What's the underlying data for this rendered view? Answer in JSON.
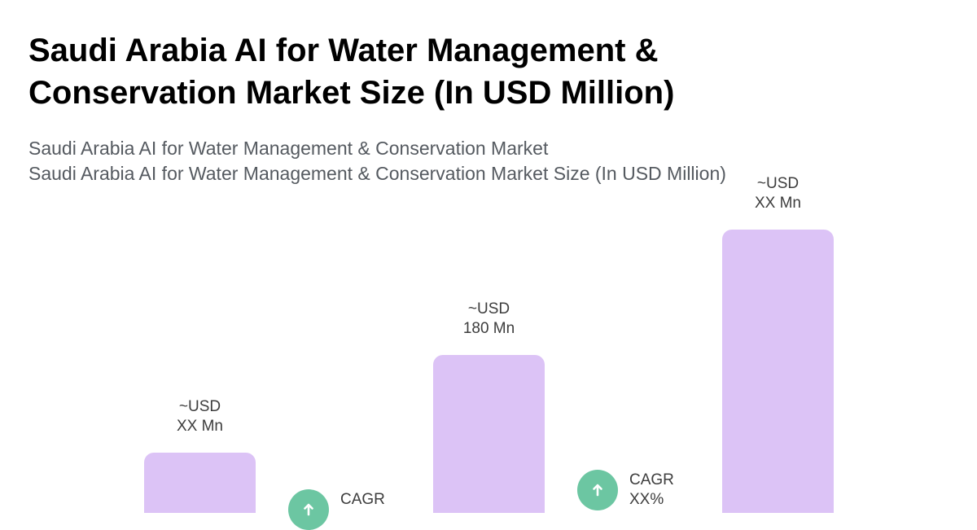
{
  "title": "Saudi Arabia AI for Water Management & Conservation Market Size (In USD Million)",
  "subtitle_lines": [
    "Saudi Arabia AI for Water Management & Conservation Market",
    "Saudi Arabia AI for Water Management & Conservation Market Size (In USD Million)"
  ],
  "colors": {
    "bar": "#dcc3f6",
    "cagr_badge": "#6cc6a2",
    "title": "#000000",
    "subtitle": "#555a60"
  },
  "chart_data": {
    "type": "bar",
    "title": "Saudi Arabia AI for Water Management & Conservation Market Size (In USD Million)",
    "categories": [
      "",
      "",
      ""
    ],
    "values": [
      null,
      180,
      null
    ],
    "value_labels": [
      [
        "~USD",
        "XX Mn"
      ],
      [
        "~USD",
        "180 Mn"
      ],
      [
        "~USD",
        "XX Mn"
      ]
    ],
    "cagr_labels": [
      [
        "CAGR",
        ""
      ],
      [
        "CAGR",
        "XX%"
      ]
    ],
    "cagr_icon": "arrow-up-icon",
    "xlabel": "",
    "ylabel": "",
    "grid": false
  }
}
